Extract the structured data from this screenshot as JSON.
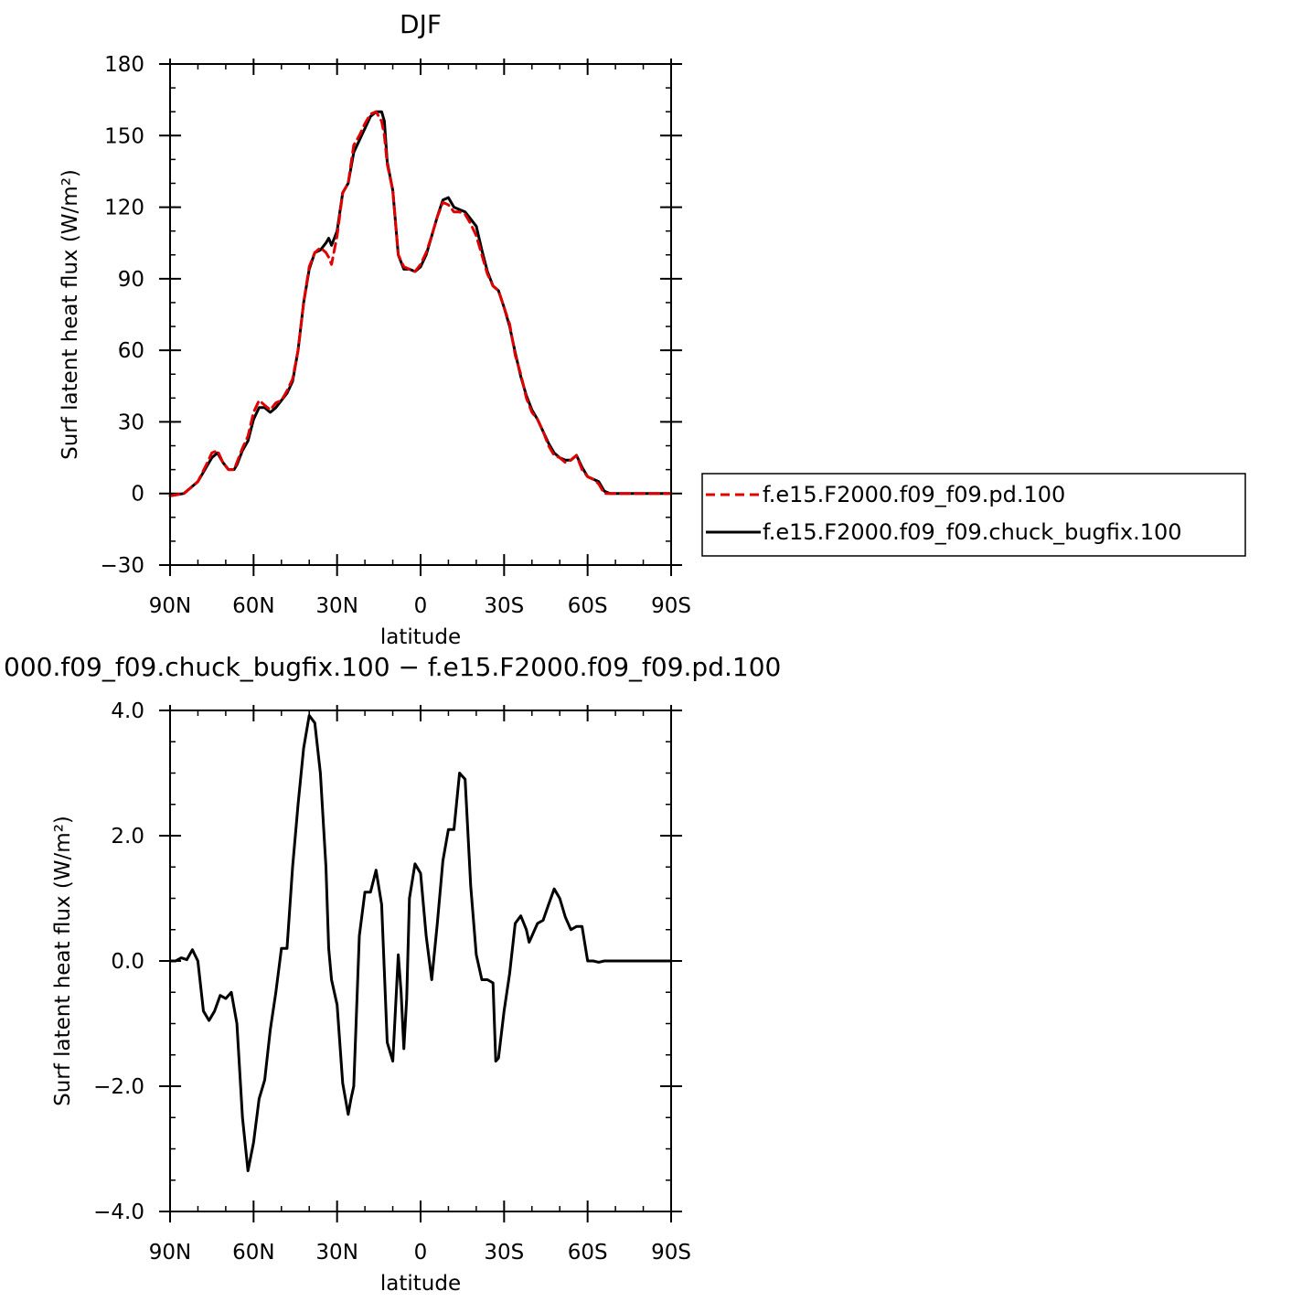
{
  "chart_data": [
    {
      "type": "line",
      "title": "DJF",
      "xlabel": "latitude",
      "ylabel": "Surf latent heat flux (W/m²)",
      "xlim": [
        90,
        -90
      ],
      "ylim": [
        -30,
        180
      ],
      "x_ticks": [
        90,
        60,
        30,
        0,
        -30,
        -60,
        -90
      ],
      "x_tick_labels": [
        "90N",
        "60N",
        "30N",
        "0",
        "30S",
        "60S",
        "90S"
      ],
      "y_ticks": [
        -30,
        0,
        30,
        60,
        90,
        120,
        150,
        180
      ],
      "y_tick_labels": [
        "−30",
        "0",
        "30",
        "60",
        "90",
        "120",
        "150",
        "180"
      ],
      "legend_position": "right",
      "series": [
        {
          "name": "f.e15.F2000.f09_f09.pd.100",
          "color": "#e00000",
          "dash": "dashed",
          "x": [
            90,
            85,
            82,
            80,
            77,
            75,
            73,
            71,
            69,
            67,
            66,
            64,
            62,
            60,
            58,
            56,
            54,
            52,
            50,
            48,
            46,
            44,
            42,
            40,
            38,
            36,
            34,
            33,
            32,
            30,
            28,
            26,
            24,
            22,
            20,
            18,
            16,
            14,
            13,
            12,
            10,
            8,
            6,
            4,
            2,
            0,
            -2,
            -4,
            -6,
            -8,
            -10,
            -12,
            -14,
            -16,
            -18,
            -20,
            -22,
            -24,
            -26,
            -28,
            -30,
            -32,
            -34,
            -36,
            -38,
            -40,
            -42,
            -44,
            -46,
            -48,
            -50,
            -52,
            -54,
            -56,
            -58,
            -60,
            -62,
            -64,
            -66,
            -68,
            -70,
            -72,
            -74,
            -76,
            -78,
            -80,
            -85,
            -90
          ],
          "y": [
            -1,
            0,
            3,
            5,
            12,
            17,
            18,
            13,
            10,
            10,
            13,
            19,
            24,
            34,
            39,
            37,
            35,
            38,
            39,
            43,
            48,
            60,
            80,
            95,
            101,
            103,
            101,
            99,
            96,
            108,
            126,
            130,
            146,
            150,
            155,
            159,
            160,
            156,
            150,
            138,
            127,
            100,
            95,
            94,
            93,
            96,
            101,
            108,
            116,
            122,
            121,
            118,
            118,
            117,
            113,
            108,
            100,
            92,
            87,
            85,
            78,
            71,
            58,
            50,
            40,
            34,
            31,
            26,
            20,
            16,
            15,
            13,
            14,
            16,
            10,
            7,
            6,
            4,
            0,
            0,
            0,
            0,
            0,
            0,
            0,
            0,
            0,
            0
          ]
        },
        {
          "name": "f.e15.F2000.f09_f09.chuck_bugfix.100",
          "color": "#000000",
          "dash": "solid",
          "x": [
            90,
            85,
            82,
            80,
            77,
            75,
            73,
            71,
            69,
            67,
            66,
            64,
            62,
            60,
            58,
            56,
            54,
            52,
            50,
            48,
            46,
            44,
            42,
            40,
            38,
            36,
            34,
            33,
            32,
            30,
            28,
            26,
            24,
            22,
            20,
            18,
            16,
            14,
            13,
            12,
            10,
            8,
            6,
            4,
            2,
            0,
            -2,
            -4,
            -6,
            -8,
            -10,
            -12,
            -14,
            -16,
            -18,
            -20,
            -22,
            -24,
            -26,
            -28,
            -30,
            -32,
            -34,
            -36,
            -38,
            -40,
            -42,
            -44,
            -46,
            -48,
            -50,
            -52,
            -54,
            -56,
            -58,
            -60,
            -62,
            -64,
            -66,
            -68,
            -70,
            -72,
            -74,
            -76,
            -78,
            -80,
            -85,
            -90
          ],
          "y": [
            -1,
            0,
            3,
            5,
            11,
            15,
            17,
            13,
            10,
            10,
            12,
            18,
            22,
            31,
            36,
            36,
            34,
            36,
            39,
            42,
            47,
            60,
            80,
            94,
            101,
            102,
            105,
            107,
            104,
            110,
            126,
            130,
            143,
            148,
            153,
            158,
            160,
            160,
            156,
            139,
            127,
            100,
            94,
            94,
            93,
            95,
            100,
            108,
            116,
            123,
            124,
            120,
            119,
            118,
            115,
            112,
            102,
            93,
            87,
            85,
            78,
            70,
            59,
            49,
            41,
            35,
            31,
            26,
            21,
            17,
            15,
            14,
            14,
            16,
            11,
            7,
            6,
            5,
            1,
            0,
            0,
            0,
            0,
            0,
            0,
            0,
            0,
            0
          ]
        }
      ]
    },
    {
      "type": "line",
      "title": "000.f09_f09.chuck_bugfix.100 − f.e15.F2000.f09_f09.pd.100",
      "xlabel": "latitude",
      "ylabel": "Surf latent heat flux (W/m²)",
      "xlim": [
        90,
        -90
      ],
      "ylim": [
        -4,
        4
      ],
      "x_ticks": [
        90,
        60,
        30,
        0,
        -30,
        -60,
        -90
      ],
      "x_tick_labels": [
        "90N",
        "60N",
        "30N",
        "0",
        "30S",
        "60S",
        "90S"
      ],
      "y_ticks": [
        -4,
        -2,
        0,
        2,
        4
      ],
      "y_tick_labels": [
        "−4.0",
        "−2.0",
        "0.0",
        "2.0",
        "4.0"
      ],
      "series": [
        {
          "color": "#000000",
          "dash": "solid",
          "x": [
            90,
            88,
            86,
            84,
            82,
            80,
            78,
            76,
            74,
            72,
            70,
            68,
            66,
            64,
            62,
            60,
            58,
            56,
            54,
            52,
            50,
            48,
            46,
            44,
            42,
            40,
            38,
            36,
            34,
            33,
            32,
            30,
            28,
            26,
            25,
            24,
            22,
            20,
            18,
            16,
            14,
            12,
            10,
            8,
            7,
            6,
            5,
            4,
            2,
            0,
            -2,
            -4,
            -6,
            -8,
            -10,
            -12,
            -14,
            -16,
            -18,
            -20,
            -22,
            -24,
            -26,
            -27,
            -28,
            -30,
            -32,
            -34,
            -36,
            -38,
            -39,
            -40,
            -42,
            -44,
            -46,
            -48,
            -50,
            -52,
            -54,
            -56,
            -58,
            -60,
            -62,
            -64,
            -66,
            -68,
            -70,
            -72,
            -74,
            -76,
            -78,
            -80,
            -85,
            -90
          ],
          "y": [
            0.0,
            0.0,
            0.05,
            0.02,
            0.18,
            0.0,
            -0.8,
            -0.95,
            -0.8,
            -0.55,
            -0.6,
            -0.5,
            -1.0,
            -2.5,
            -3.35,
            -2.9,
            -2.2,
            -1.9,
            -1.1,
            -0.5,
            0.2,
            0.2,
            1.5,
            2.5,
            3.4,
            3.92,
            3.8,
            3.0,
            1.5,
            0.2,
            -0.3,
            -0.7,
            -1.95,
            -2.45,
            -2.2,
            -2.0,
            0.4,
            1.1,
            1.1,
            1.45,
            0.9,
            -1.3,
            -1.6,
            0.1,
            -0.5,
            -1.4,
            -0.6,
            1.0,
            1.55,
            1.4,
            0.4,
            -0.3,
            0.6,
            1.6,
            2.1,
            2.1,
            3.0,
            2.9,
            1.2,
            0.1,
            -0.3,
            -0.3,
            -0.35,
            -1.6,
            -1.55,
            -0.8,
            -0.2,
            0.6,
            0.72,
            0.5,
            0.3,
            0.4,
            0.6,
            0.65,
            0.9,
            1.15,
            1.0,
            0.7,
            0.5,
            0.55,
            0.55,
            0.0,
            0.0,
            -0.02,
            0.0,
            0.0,
            0.0,
            0.0,
            0.0,
            0.0,
            0.0,
            0.0,
            0.0,
            0.0
          ]
        }
      ]
    }
  ]
}
